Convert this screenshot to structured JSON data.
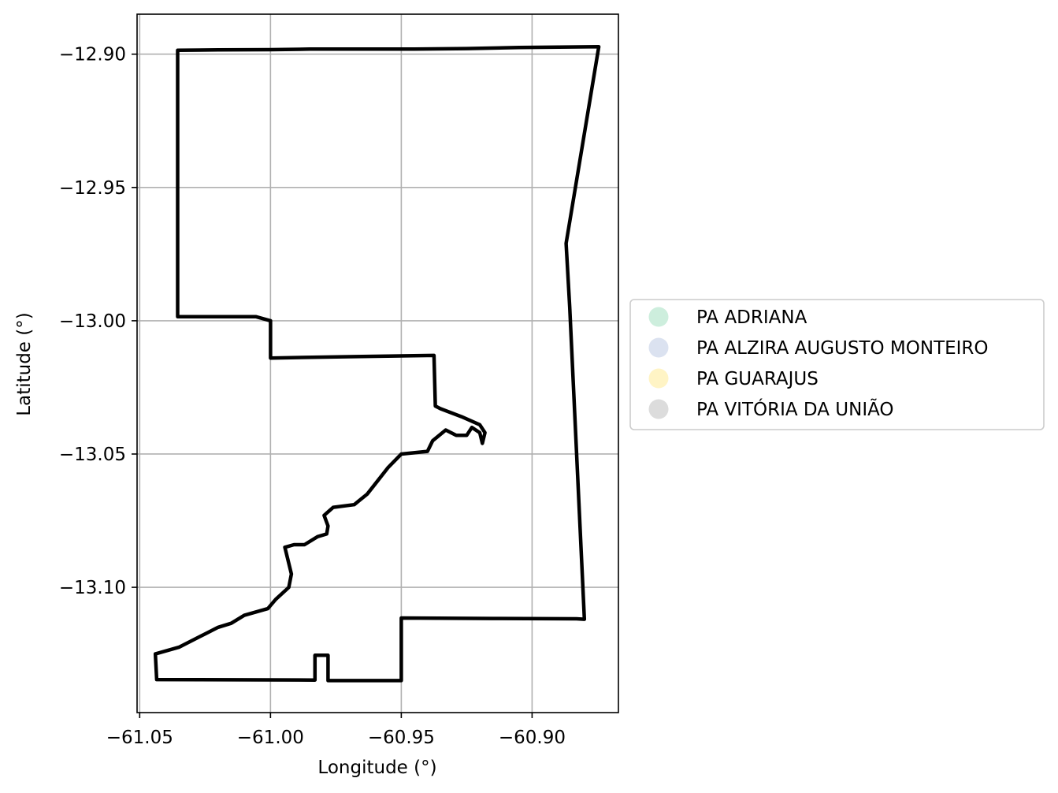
{
  "chart_data": {
    "type": "map",
    "xlabel": "Longitude (°)",
    "ylabel": "Latitude (°)",
    "xlim": [
      -61.051,
      -60.867
    ],
    "ylim": [
      -13.147,
      -12.885
    ],
    "grid": true,
    "xticks": [
      {
        "value": -61.05,
        "label": "−61.05"
      },
      {
        "value": -61.0,
        "label": "−61.00"
      },
      {
        "value": -60.95,
        "label": "−60.95"
      },
      {
        "value": -60.9,
        "label": "−60.90"
      }
    ],
    "yticks": [
      {
        "value": -12.9,
        "label": "−12.90"
      },
      {
        "value": -12.95,
        "label": "−12.95"
      },
      {
        "value": -13.0,
        "label": "−13.00"
      },
      {
        "value": -13.05,
        "label": "−13.05"
      },
      {
        "value": -13.1,
        "label": "−13.10"
      }
    ],
    "legend_position": "right-center",
    "legend": [
      {
        "label": "PA ADRIANA",
        "color": "#cdeedd"
      },
      {
        "label": "PA ALZIRA AUGUSTO MONTEIRO",
        "color": "#dbe2f0"
      },
      {
        "label": "PA GUARAJUS",
        "color": "#fff4c5"
      },
      {
        "label": "PA VITÓRIA DA UNIÃO",
        "color": "#dcdcdc"
      }
    ],
    "boundary": {
      "stroke": "#000000",
      "coordinates": [
        [
          -61.0355,
          -12.8985
        ],
        [
          -61.02,
          -12.8984
        ],
        [
          -61.0,
          -12.8983
        ],
        [
          -60.985,
          -12.8981
        ],
        [
          -60.965,
          -12.8981
        ],
        [
          -60.945,
          -12.8981
        ],
        [
          -60.925,
          -12.8979
        ],
        [
          -60.905,
          -12.8975
        ],
        [
          -60.8745,
          -12.8972
        ],
        [
          -60.887,
          -12.971
        ],
        [
          -60.8856,
          -12.995
        ],
        [
          -60.88,
          -13.112
        ],
        [
          -60.883,
          -13.1118
        ],
        [
          -60.915,
          -13.1117
        ],
        [
          -60.95,
          -13.1115
        ],
        [
          -60.95,
          -13.135
        ],
        [
          -60.978,
          -13.135
        ],
        [
          -60.978,
          -13.1255
        ],
        [
          -60.983,
          -13.1255
        ],
        [
          -60.983,
          -13.1348
        ],
        [
          -61.0435,
          -13.1346
        ],
        [
          -61.044,
          -13.125
        ],
        [
          -61.035,
          -13.1225
        ],
        [
          -61.025,
          -13.1175
        ],
        [
          -61.02,
          -13.115
        ],
        [
          -61.015,
          -13.1135
        ],
        [
          -61.01,
          -13.1105
        ],
        [
          -61.001,
          -13.108
        ],
        [
          -60.998,
          -13.1045
        ],
        [
          -60.993,
          -13.1
        ],
        [
          -60.992,
          -13.095
        ],
        [
          -60.9945,
          -13.085
        ],
        [
          -60.991,
          -13.084
        ],
        [
          -60.987,
          -13.084
        ],
        [
          -60.982,
          -13.081
        ],
        [
          -60.9785,
          -13.08
        ],
        [
          -60.978,
          -13.077
        ],
        [
          -60.9795,
          -13.073
        ],
        [
          -60.976,
          -13.07
        ],
        [
          -60.968,
          -13.069
        ],
        [
          -60.963,
          -13.065
        ],
        [
          -60.959,
          -13.06
        ],
        [
          -60.955,
          -13.055
        ],
        [
          -60.95,
          -13.05
        ],
        [
          -60.94,
          -13.049
        ],
        [
          -60.938,
          -13.045
        ],
        [
          -60.933,
          -13.041
        ],
        [
          -60.929,
          -13.043
        ],
        [
          -60.925,
          -13.043
        ],
        [
          -60.923,
          -13.04
        ],
        [
          -60.92,
          -13.042
        ],
        [
          -60.919,
          -13.046
        ],
        [
          -60.918,
          -13.042
        ],
        [
          -60.92,
          -13.039
        ],
        [
          -60.927,
          -13.036
        ],
        [
          -60.935,
          -13.033
        ],
        [
          -60.937,
          -13.032
        ],
        [
          -60.9375,
          -13.013
        ],
        [
          -60.97,
          -13.0135
        ],
        [
          -61.0,
          -13.014
        ],
        [
          -61.0,
          -13.0
        ],
        [
          -61.0055,
          -12.9985
        ],
        [
          -61.02,
          -12.9985
        ],
        [
          -61.0355,
          -12.9985
        ],
        [
          -61.0355,
          -12.903
        ],
        [
          -61.0355,
          -12.8985
        ]
      ]
    }
  }
}
